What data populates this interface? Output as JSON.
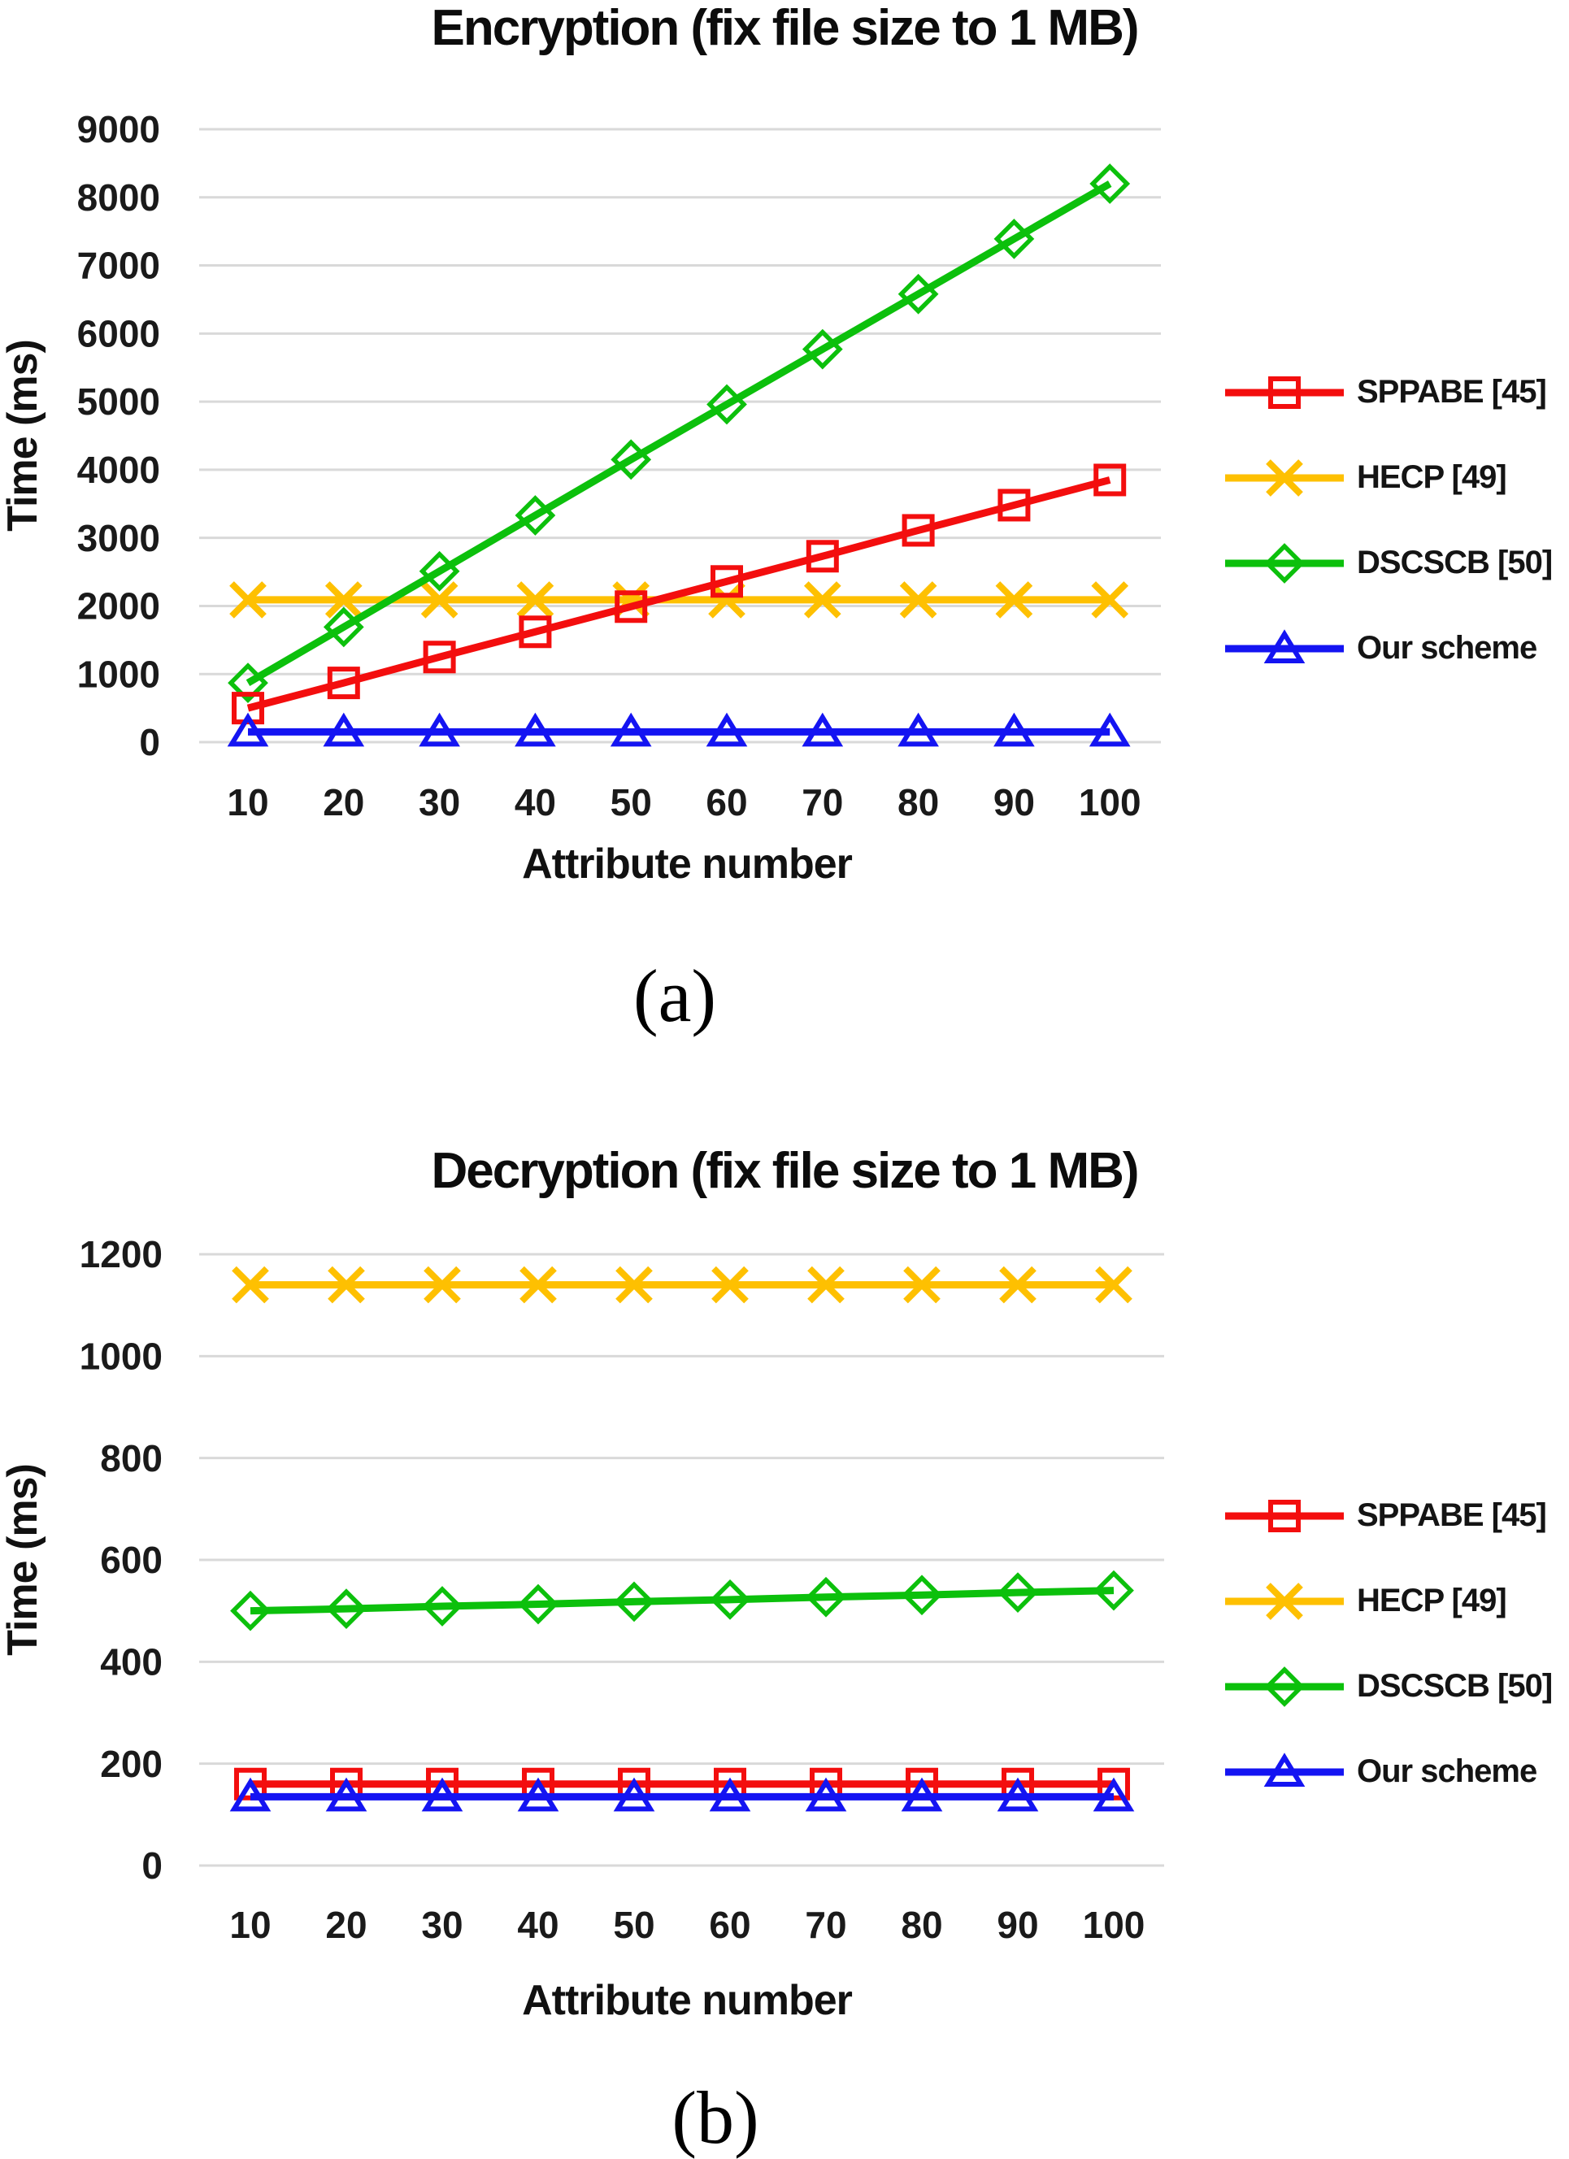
{
  "figure": {
    "background": "#ffffff",
    "grid_color": "#d9d9d9",
    "tick_color": "#1a1a1a"
  },
  "chart_data": [
    {
      "type": "line",
      "title": "Encryption (fix file size to 1 MB)",
      "xlabel": "Attribute number",
      "ylabel": "Time (ms)",
      "sublabel": "(a)",
      "x": [
        10,
        20,
        30,
        40,
        50,
        60,
        70,
        80,
        90,
        100
      ],
      "ylim": [
        0,
        9000
      ],
      "yticks": [
        0,
        1000,
        2000,
        3000,
        4000,
        5000,
        6000,
        7000,
        8000,
        9000
      ],
      "grid": "horizontal",
      "legend_position": "right",
      "draw_order": [
        1,
        2,
        0,
        3
      ],
      "series": [
        {
          "name": "SPPABE [45]",
          "color": "#f30e0e",
          "marker": "square",
          "values": [
            500,
            870,
            1250,
            1620,
            1990,
            2360,
            2730,
            3110,
            3480,
            3850
          ]
        },
        {
          "name": "HECP [49]",
          "color": "#fec001",
          "marker": "x",
          "values": [
            2090,
            2090,
            2090,
            2090,
            2090,
            2090,
            2090,
            2090,
            2090,
            2090
          ]
        },
        {
          "name": "DSCSCB [50]",
          "color": "#0cc00c",
          "marker": "diamond",
          "values": [
            870,
            1690,
            2510,
            3330,
            4150,
            4960,
            5770,
            6580,
            7390,
            8200
          ]
        },
        {
          "name": "Our scheme",
          "color": "#1414f2",
          "marker": "triangle",
          "values": [
            150,
            150,
            150,
            150,
            150,
            150,
            150,
            150,
            150,
            150
          ]
        }
      ]
    },
    {
      "type": "line",
      "title": "Decryption (fix file size to 1 MB)",
      "xlabel": "Attribute number",
      "ylabel": "Time (ms)",
      "sublabel": "(b)",
      "x": [
        10,
        20,
        30,
        40,
        50,
        60,
        70,
        80,
        90,
        100
      ],
      "ylim": [
        0,
        1200
      ],
      "yticks": [
        0,
        200,
        400,
        600,
        800,
        1000,
        1200
      ],
      "grid": "horizontal",
      "legend_position": "right",
      "draw_order": [
        1,
        2,
        0,
        3
      ],
      "series": [
        {
          "name": "SPPABE [45]",
          "color": "#f30e0e",
          "marker": "square",
          "values": [
            160,
            160,
            160,
            160,
            160,
            160,
            160,
            160,
            160,
            160
          ]
        },
        {
          "name": "HECP [49]",
          "color": "#fec001",
          "marker": "x",
          "values": [
            1140,
            1140,
            1140,
            1140,
            1140,
            1140,
            1140,
            1140,
            1140,
            1140
          ]
        },
        {
          "name": "DSCSCB [50]",
          "color": "#0cc00c",
          "marker": "diamond",
          "values": [
            500,
            504,
            509,
            513,
            518,
            522,
            527,
            531,
            536,
            540
          ]
        },
        {
          "name": "Our scheme",
          "color": "#1414f2",
          "marker": "triangle",
          "values": [
            135,
            135,
            135,
            135,
            135,
            135,
            135,
            135,
            135,
            135
          ]
        }
      ]
    }
  ]
}
